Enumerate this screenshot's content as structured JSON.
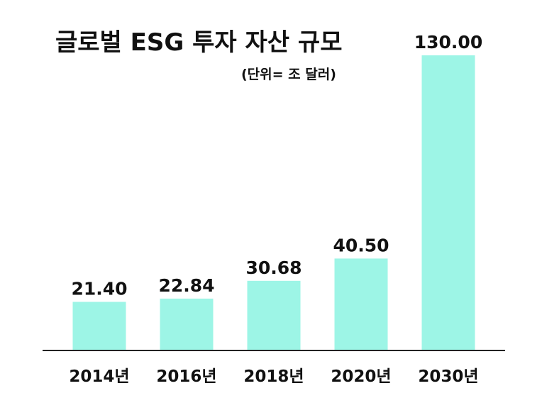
{
  "chart_data": {
    "type": "bar",
    "title": "글로벌 ESG 투자 자산 규모",
    "subtitle": "(단위= 조 달러)",
    "categories": [
      "2014년",
      "2016년",
      "2018년",
      "2020년",
      "2030년"
    ],
    "values": [
      21.4,
      22.84,
      30.68,
      40.5,
      130.0
    ],
    "value_labels": [
      "21.40",
      "22.84",
      "30.68",
      "40.50",
      "130.00"
    ],
    "ylim": [
      0,
      130
    ],
    "grid": false,
    "legend": "none",
    "colors": {
      "bar": "#9df5e6",
      "text": "#111111",
      "axis": "#222222",
      "background": "#ffffff"
    }
  }
}
